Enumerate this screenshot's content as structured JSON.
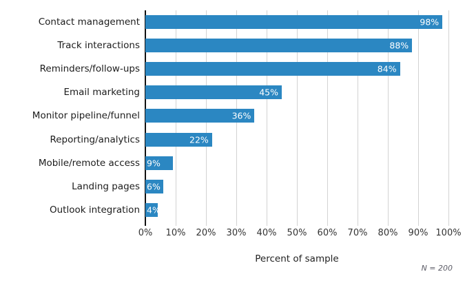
{
  "chart_data": {
    "type": "bar",
    "orientation": "horizontal",
    "categories": [
      "Contact management",
      "Track interactions",
      "Reminders/follow-ups",
      "Email marketing",
      "Monitor pipeline/funnel",
      "Reporting/analytics",
      "Mobile/remote access",
      "Landing pages",
      "Outlook integration"
    ],
    "values": [
      98,
      88,
      84,
      45,
      36,
      22,
      9,
      6,
      4
    ],
    "value_labels": [
      "98%",
      "88%",
      "84%",
      "45%",
      "36%",
      "22%",
      "9%",
      "6%",
      "4%"
    ],
    "title": "",
    "xlabel": "Percent of sample",
    "ylabel": "",
    "x_ticks": [
      "0%",
      "10%",
      "20%",
      "30%",
      "40%",
      "50%",
      "60%",
      "70%",
      "80%",
      "90%",
      "100%"
    ],
    "xlim": [
      0,
      100
    ],
    "grid": "vertical gridlines every 10%, no horizontal gridlines",
    "legend": "none",
    "note": "N = 200",
    "colors": {
      "bar": "#2b87c2",
      "gridline": "#d2d2d2",
      "axis_line": "#111111",
      "category_label": "#1c1c1c",
      "tick_label": "#333333",
      "value_label": "#ffffff",
      "note_text": "#5b5b66",
      "background": "#ffffff"
    }
  }
}
